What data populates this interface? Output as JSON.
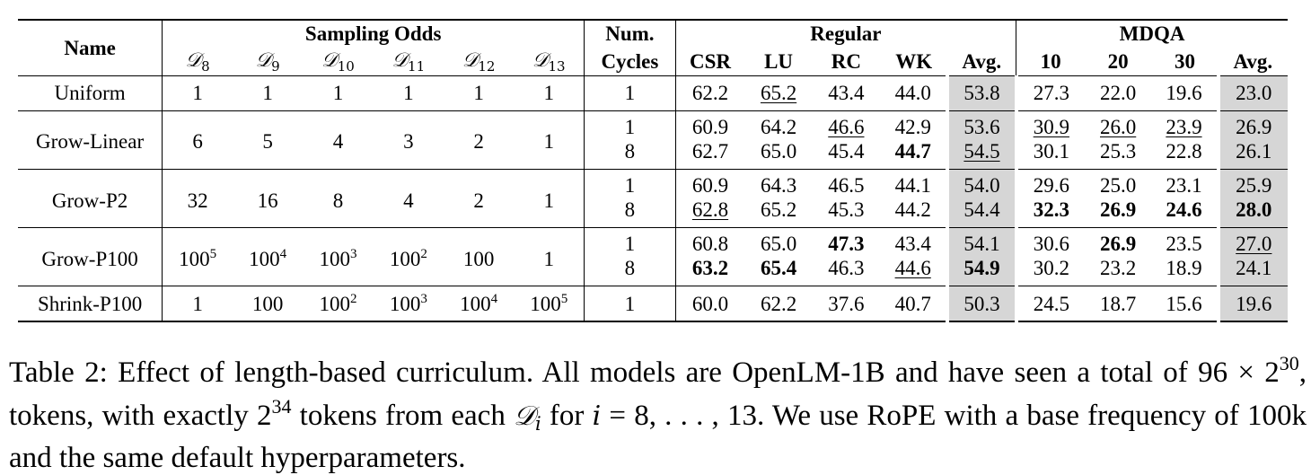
{
  "header": {
    "name": "Name",
    "sampling_odds": "Sampling Odds",
    "num_cycles_1": "Num.",
    "num_cycles_2": "Cycles",
    "regular": "Regular",
    "mdqa": "MDQA",
    "d_symbol": "𝒟",
    "d_subs": [
      "8",
      "9",
      "10",
      "11",
      "12",
      "13"
    ],
    "regular_cols": [
      "CSR",
      "LU",
      "RC",
      "WK",
      "Avg."
    ],
    "mdqa_cols": [
      "10",
      "20",
      "30",
      "Avg."
    ]
  },
  "rows": [
    {
      "name": "Uniform",
      "odds": [
        {
          "base": "1",
          "exp": ""
        },
        {
          "base": "1",
          "exp": ""
        },
        {
          "base": "1",
          "exp": ""
        },
        {
          "base": "1",
          "exp": ""
        },
        {
          "base": "1",
          "exp": ""
        },
        {
          "base": "1",
          "exp": ""
        }
      ],
      "cycles": [
        {
          "n": "1",
          "regular": [
            {
              "v": "62.2"
            },
            {
              "v": "65.2",
              "u": true
            },
            {
              "v": "43.4"
            },
            {
              "v": "44.0"
            },
            {
              "v": "53.8"
            }
          ],
          "mdqa": [
            {
              "v": "27.3"
            },
            {
              "v": "22.0"
            },
            {
              "v": "19.6"
            },
            {
              "v": "23.0"
            }
          ]
        }
      ]
    },
    {
      "name": "Grow-Linear",
      "odds": [
        {
          "base": "6",
          "exp": ""
        },
        {
          "base": "5",
          "exp": ""
        },
        {
          "base": "4",
          "exp": ""
        },
        {
          "base": "3",
          "exp": ""
        },
        {
          "base": "2",
          "exp": ""
        },
        {
          "base": "1",
          "exp": ""
        }
      ],
      "cycles": [
        {
          "n": "1",
          "regular": [
            {
              "v": "60.9"
            },
            {
              "v": "64.2"
            },
            {
              "v": "46.6",
              "u": true
            },
            {
              "v": "42.9"
            },
            {
              "v": "53.6"
            }
          ],
          "mdqa": [
            {
              "v": "30.9",
              "u": true
            },
            {
              "v": "26.0",
              "u": true
            },
            {
              "v": "23.9",
              "u": true
            },
            {
              "v": "26.9"
            }
          ]
        },
        {
          "n": "8",
          "regular": [
            {
              "v": "62.7"
            },
            {
              "v": "65.0"
            },
            {
              "v": "45.4"
            },
            {
              "v": "44.7",
              "b": true
            },
            {
              "v": "54.5",
              "u": true
            }
          ],
          "mdqa": [
            {
              "v": "30.1"
            },
            {
              "v": "25.3"
            },
            {
              "v": "22.8"
            },
            {
              "v": "26.1"
            }
          ]
        }
      ]
    },
    {
      "name": "Grow-P2",
      "odds": [
        {
          "base": "32",
          "exp": ""
        },
        {
          "base": "16",
          "exp": ""
        },
        {
          "base": "8",
          "exp": ""
        },
        {
          "base": "4",
          "exp": ""
        },
        {
          "base": "2",
          "exp": ""
        },
        {
          "base": "1",
          "exp": ""
        }
      ],
      "cycles": [
        {
          "n": "1",
          "regular": [
            {
              "v": "60.9"
            },
            {
              "v": "64.3"
            },
            {
              "v": "46.5"
            },
            {
              "v": "44.1"
            },
            {
              "v": "54.0"
            }
          ],
          "mdqa": [
            {
              "v": "29.6"
            },
            {
              "v": "25.0"
            },
            {
              "v": "23.1"
            },
            {
              "v": "25.9"
            }
          ]
        },
        {
          "n": "8",
          "regular": [
            {
              "v": "62.8",
              "u": true
            },
            {
              "v": "65.2"
            },
            {
              "v": "45.3"
            },
            {
              "v": "44.2"
            },
            {
              "v": "54.4"
            }
          ],
          "mdqa": [
            {
              "v": "32.3",
              "b": true
            },
            {
              "v": "26.9",
              "b": true
            },
            {
              "v": "24.6",
              "b": true
            },
            {
              "v": "28.0",
              "b": true
            }
          ]
        }
      ]
    },
    {
      "name": "Grow-P100",
      "odds": [
        {
          "base": "100",
          "exp": "5"
        },
        {
          "base": "100",
          "exp": "4"
        },
        {
          "base": "100",
          "exp": "3"
        },
        {
          "base": "100",
          "exp": "2"
        },
        {
          "base": "100",
          "exp": ""
        },
        {
          "base": "1",
          "exp": ""
        }
      ],
      "cycles": [
        {
          "n": "1",
          "regular": [
            {
              "v": "60.8"
            },
            {
              "v": "65.0"
            },
            {
              "v": "47.3",
              "b": true
            },
            {
              "v": "43.4"
            },
            {
              "v": "54.1"
            }
          ],
          "mdqa": [
            {
              "v": "30.6"
            },
            {
              "v": "26.9",
              "b": true
            },
            {
              "v": "23.5"
            },
            {
              "v": "27.0",
              "u": true
            }
          ]
        },
        {
          "n": "8",
          "regular": [
            {
              "v": "63.2",
              "b": true
            },
            {
              "v": "65.4",
              "b": true
            },
            {
              "v": "46.3"
            },
            {
              "v": "44.6",
              "u": true
            },
            {
              "v": "54.9",
              "b": true
            }
          ],
          "mdqa": [
            {
              "v": "30.2"
            },
            {
              "v": "23.2"
            },
            {
              "v": "18.9"
            },
            {
              "v": "24.1"
            }
          ]
        }
      ]
    },
    {
      "name": "Shrink-P100",
      "odds": [
        {
          "base": "1",
          "exp": ""
        },
        {
          "base": "100",
          "exp": ""
        },
        {
          "base": "100",
          "exp": "2"
        },
        {
          "base": "100",
          "exp": "3"
        },
        {
          "base": "100",
          "exp": "4"
        },
        {
          "base": "100",
          "exp": "5"
        }
      ],
      "cycles": [
        {
          "n": "1",
          "regular": [
            {
              "v": "60.0"
            },
            {
              "v": "62.2"
            },
            {
              "v": "37.6"
            },
            {
              "v": "40.7"
            },
            {
              "v": "50.3"
            }
          ],
          "mdqa": [
            {
              "v": "24.5"
            },
            {
              "v": "18.7"
            },
            {
              "v": "15.6"
            },
            {
              "v": "19.6"
            }
          ]
        }
      ]
    }
  ],
  "caption": {
    "label": "Table 2:",
    "text1": "Effect of length-based curriculum. All models are OpenLM-1B and have seen a total of",
    "n96": "96",
    "times": "×",
    "two": "2",
    "exp30": "30",
    "text2": "tokens, with exactly",
    "exp34": "34",
    "text3": "tokens from each",
    "d_symbol": "𝒟",
    "i": "i",
    "text4": "for",
    "eq": "= 8, . . . , 13.",
    "text5": "We use RoPE with a base frequency of 100k and the same default hyperparameters."
  }
}
